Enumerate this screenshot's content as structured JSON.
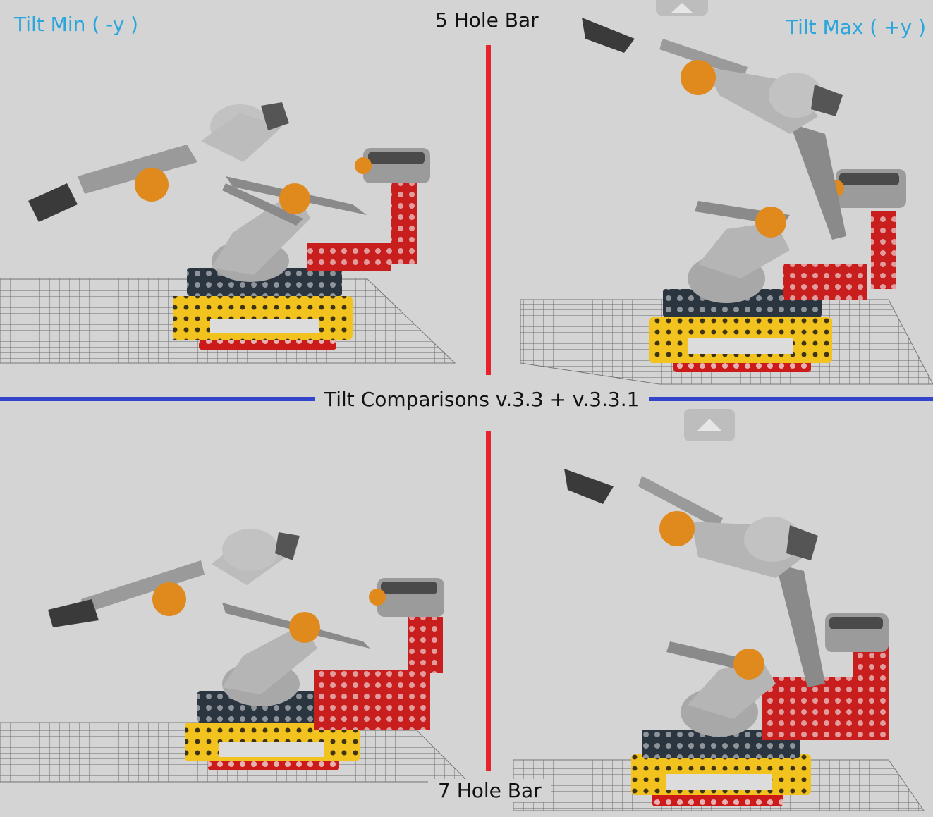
{
  "labels": {
    "top_left": "Tilt Min ( -y )",
    "top_right": "Tilt Max ( +y )",
    "top_center": "5 Hole Bar",
    "middle": "Tilt Comparisons v.3.3 + v.3.3.1",
    "bottom_center": "7 Hole Bar"
  },
  "colors": {
    "background": "#d4d4d4",
    "vertical_divider": "#e8222a",
    "horizontal_divider": "#3344cc",
    "label_blue": "#2aa6dc"
  }
}
